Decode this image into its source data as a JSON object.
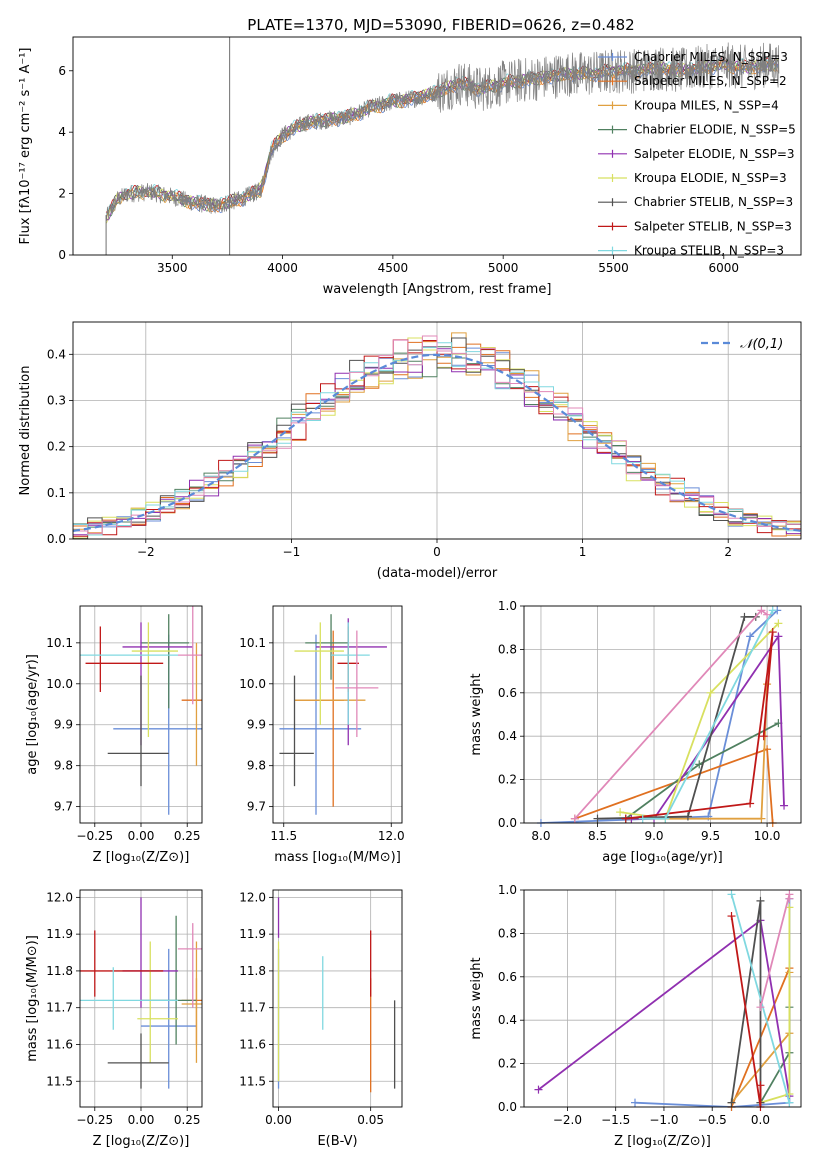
{
  "figure_title": "PLATE=1370, MJD=53090, FIBERID=0626, z=0.482",
  "colors": {
    "Chabrier MILES": "#6a8ed8",
    "Salpeter MILES": "#e07020",
    "Kroupa MILES": "#e0a040",
    "Chabrier ELODIE": "#508060",
    "Salpeter ELODIE": "#9030b0",
    "Kroupa ELODIE": "#d8e060",
    "Chabrier STELIB": "#505050",
    "Salpeter STELIB": "#c01818",
    "Kroupa STELIB": "#80d8e0",
    "pink": "#e088b8",
    "data": "#808080",
    "normal": "#5a8ad8"
  },
  "chart_data": [
    {
      "id": "spectrum",
      "type": "line",
      "xlabel": "wavelength [Angstrom, rest frame]",
      "ylabel": "Flux [fλ10⁻¹⁷ erg cm⁻² s⁻¹ A⁻¹]",
      "xlim": [
        3050,
        6350
      ],
      "ylim": [
        0,
        7.1
      ],
      "xticks": [
        3500,
        4000,
        4500,
        5000,
        5500,
        6000
      ],
      "yticks": [
        0,
        2,
        4,
        6
      ],
      "grid": false,
      "legend_position": "right",
      "series": [
        {
          "name": "Chabrier MILES, N_SSP=3"
        },
        {
          "name": "Salpeter MILES, N_SSP=2"
        },
        {
          "name": "Kroupa MILES, N_SSP=4"
        },
        {
          "name": "Chabrier ELODIE, N_SSP=5"
        },
        {
          "name": "Salpeter ELODIE, N_SSP=3"
        },
        {
          "name": "Kroupa ELODIE, N_SSP=3"
        },
        {
          "name": "Chabrier STELIB, N_SSP=3"
        },
        {
          "name": "Salpeter STELIB, N_SSP=3"
        },
        {
          "name": "Kroupa STELIB, N_SSP=3"
        }
      ],
      "spectrum_anchors": {
        "x": [
          3200,
          3250,
          3300,
          3400,
          3500,
          3600,
          3700,
          3800,
          3900,
          3950,
          4000,
          4100,
          4200,
          4300,
          4400,
          4500,
          4600,
          4700,
          4800,
          4900,
          5000,
          5100,
          5200,
          5300,
          5400,
          5500,
          5600,
          5700,
          5800,
          5900,
          6000,
          6100,
          6200
        ],
        "y": [
          1.2,
          1.8,
          2.0,
          2.05,
          1.9,
          1.7,
          1.6,
          1.8,
          2.1,
          3.4,
          3.9,
          4.3,
          4.4,
          4.5,
          4.8,
          5.0,
          5.1,
          5.3,
          5.6,
          5.4,
          5.6,
          5.7,
          5.8,
          5.9,
          5.9,
          6.0,
          6.0,
          6.1,
          6.0,
          6.1,
          6.2,
          6.1,
          6.2
        ]
      }
    },
    {
      "id": "residuals",
      "type": "histogram",
      "xlabel": "(data-model)/error",
      "ylabel": "Normed distribution",
      "xlim": [
        -2.5,
        2.5
      ],
      "ylim": [
        0,
        0.47
      ],
      "xticks": [
        -2,
        -1,
        0,
        1,
        2
      ],
      "yticks": [
        0.0,
        0.1,
        0.2,
        0.3,
        0.4
      ],
      "grid": true,
      "legend_position": "top-right",
      "bin_width": 0.1,
      "normal_label": "𝒩(0,1)"
    },
    {
      "id": "age-vs-Z",
      "type": "errorbar",
      "xlabel": "Z [log₁₀(Z/Z⊙)]",
      "ylabel": "age  [log₁₀(age/yr)]",
      "xlim": [
        -0.33,
        0.33
      ],
      "ylim": [
        9.66,
        10.19
      ],
      "xticks": [
        -0.25,
        0.0,
        0.25
      ],
      "xticklabels": [
        "−0.25",
        "0.00",
        "0.25"
      ],
      "yticks": [
        9.7,
        9.8,
        9.9,
        10.0,
        10.1
      ],
      "grid": true,
      "points": [
        {
          "c": "Chabrier MILES",
          "x": 0.15,
          "y": 9.89,
          "xe": [
            -0.15,
            0.4
          ],
          "ye": [
            9.68,
            10.12
          ]
        },
        {
          "c": "Salpeter MILES",
          "x": 0.3,
          "y": 9.96,
          "xe": [
            0.22,
            0.4
          ],
          "ye": [
            9.96,
            9.96
          ]
        },
        {
          "c": "Kroupa MILES",
          "x": 0.3,
          "y": 9.96,
          "xe": [
            0.3,
            0.3
          ],
          "ye": [
            9.8,
            10.1
          ]
        },
        {
          "c": "Chabrier ELODIE",
          "x": 0.15,
          "y": 10.1,
          "xe": [
            0.0,
            0.26
          ],
          "ye": [
            9.94,
            10.17
          ]
        },
        {
          "c": "Salpeter ELODIE",
          "x": 0.0,
          "y": 10.09,
          "xe": [
            -0.1,
            0.28
          ],
          "ye": [
            9.85,
            10.15
          ]
        },
        {
          "c": "Kroupa ELODIE",
          "x": 0.04,
          "y": 10.08,
          "xe": [
            -0.05,
            0.2
          ],
          "ye": [
            9.87,
            10.15
          ]
        },
        {
          "c": "Chabrier STELIB",
          "x": 0.0,
          "y": 9.83,
          "xe": [
            -0.18,
            0.15
          ],
          "ye": [
            9.75,
            10.02
          ]
        },
        {
          "c": "Salpeter STELIB",
          "x": -0.22,
          "y": 10.05,
          "xe": [
            -0.3,
            0.12
          ],
          "ye": [
            9.98,
            10.14
          ]
        },
        {
          "c": "Kroupa STELIB",
          "x": -0.15,
          "y": 10.07,
          "xe": [
            -0.33,
            0.2
          ],
          "ye": [
            10.07,
            10.07
          ]
        },
        {
          "c": "pink",
          "x": 0.28,
          "y": 10.07,
          "xe": [
            0.2,
            0.33
          ],
          "ye": [
            9.95,
            10.19
          ]
        }
      ]
    },
    {
      "id": "age-vs-mass",
      "type": "errorbar",
      "xlabel": "mass [log₁₀(M/M⊙)]",
      "ylabel": "",
      "xlim": [
        11.45,
        12.05
      ],
      "ylim": [
        9.66,
        10.19
      ],
      "xticks": [
        11.5,
        12.0
      ],
      "xticklabels": [
        "11.5",
        "12.0"
      ],
      "yticks": [
        9.7,
        9.8,
        9.9,
        10.0,
        10.1
      ],
      "grid": true,
      "points": [
        {
          "c": "Chabrier MILES",
          "x": 11.65,
          "y": 9.89,
          "xe": [
            11.48,
            11.86
          ],
          "ye": [
            9.68,
            10.12
          ]
        },
        {
          "c": "Salpeter MILES",
          "x": 11.73,
          "y": 9.96,
          "xe": [
            11.55,
            11.78
          ],
          "ye": [
            9.7,
            10.13
          ]
        },
        {
          "c": "Kroupa MILES",
          "x": 11.72,
          "y": 9.96,
          "xe": [
            11.55,
            11.88
          ],
          "ye": [
            9.96,
            9.96
          ]
        },
        {
          "c": "Chabrier ELODIE",
          "x": 11.72,
          "y": 10.1,
          "xe": [
            11.6,
            11.8
          ],
          "ye": [
            10.01,
            10.17
          ]
        },
        {
          "c": "Salpeter ELODIE",
          "x": 11.8,
          "y": 10.09,
          "xe": [
            11.65,
            11.98
          ],
          "ye": [
            9.85,
            10.16
          ]
        },
        {
          "c": "Kroupa ELODIE",
          "x": 11.67,
          "y": 10.08,
          "xe": [
            11.55,
            11.78
          ],
          "ye": [
            9.9,
            10.15
          ]
        },
        {
          "c": "Chabrier STELIB",
          "x": 11.55,
          "y": 9.83,
          "xe": [
            11.48,
            11.64
          ],
          "ye": [
            9.75,
            10.02
          ]
        },
        {
          "c": "Salpeter STELIB",
          "x": 11.8,
          "y": 10.05,
          "xe": [
            11.75,
            11.85
          ],
          "ye": [
            9.98,
            10.14
          ]
        },
        {
          "c": "Kroupa STELIB",
          "x": 11.8,
          "y": 10.07,
          "xe": [
            11.72,
            11.9
          ],
          "ye": [
            9.9,
            10.15
          ]
        },
        {
          "c": "pink",
          "x": 11.84,
          "y": 9.99,
          "xe": [
            11.74,
            11.94
          ],
          "ye": [
            9.87,
            10.13
          ]
        }
      ]
    },
    {
      "id": "weight-vs-age",
      "type": "line",
      "xlabel": "age  [log₁₀(age/yr)]",
      "ylabel": "mass weight",
      "xlim": [
        7.85,
        10.3
      ],
      "ylim": [
        0,
        1
      ],
      "xticks": [
        8.0,
        8.5,
        9.0,
        9.5,
        10.0
      ],
      "yticks": [
        0.0,
        0.2,
        0.4,
        0.6,
        0.8,
        1.0
      ],
      "grid": true,
      "series": [
        {
          "c": "Chabrier MILES",
          "x": [
            8.0,
            9.48,
            9.85,
            10.09
          ],
          "y": [
            0.0,
            0.03,
            0.86,
            0.98
          ]
        },
        {
          "c": "Salpeter MILES",
          "x": [
            8.3,
            10.0,
            10.05
          ],
          "y": [
            0.02,
            0.34,
            0.0
          ]
        },
        {
          "c": "Kroupa MILES",
          "x": [
            8.8,
            9.95,
            10.0
          ],
          "y": [
            0.02,
            0.02,
            0.64
          ]
        },
        {
          "c": "Chabrier ELODIE",
          "x": [
            8.75,
            9.4,
            10.1
          ],
          "y": [
            0.02,
            0.27,
            0.46
          ]
        },
        {
          "c": "Salpeter ELODIE",
          "x": [
            8.8,
            9.0,
            10.1,
            10.15
          ],
          "y": [
            0.02,
            0.02,
            0.86,
            0.08
          ]
        },
        {
          "c": "Kroupa ELODIE",
          "x": [
            8.7,
            9.1,
            9.5,
            10.1
          ],
          "y": [
            0.05,
            0.02,
            0.6,
            0.92
          ]
        },
        {
          "c": "Chabrier STELIB",
          "x": [
            8.5,
            9.3,
            9.8,
            9.9
          ],
          "y": [
            0.02,
            0.03,
            0.95,
            0.95
          ]
        },
        {
          "c": "Salpeter STELIB",
          "x": [
            8.75,
            9.85,
            10.05,
            9.97
          ],
          "y": [
            0.02,
            0.09,
            0.88,
            0.4
          ]
        },
        {
          "c": "Kroupa STELIB",
          "x": [
            8.9,
            9.1,
            10.05
          ],
          "y": [
            0.02,
            0.02,
            0.98
          ]
        },
        {
          "c": "pink",
          "x": [
            8.3,
            9.95,
            10.0
          ],
          "y": [
            0.02,
            0.98,
            0.96
          ]
        }
      ]
    },
    {
      "id": "mass-vs-Z",
      "type": "errorbar",
      "xlabel": "Z [log₁₀(Z/Z⊙)]",
      "ylabel": "mass [log₁₀(M/M⊙)]",
      "xlim": [
        -0.33,
        0.33
      ],
      "ylim": [
        11.43,
        12.02
      ],
      "xticks": [
        -0.25,
        0.0,
        0.25
      ],
      "xticklabels": [
        "−0.25",
        "0.00",
        "0.25"
      ],
      "yticks": [
        11.5,
        11.6,
        11.7,
        11.8,
        11.9,
        12.0
      ],
      "grid": true,
      "points": [
        {
          "c": "Chabrier MILES",
          "x": 0.15,
          "y": 11.65,
          "xe": [
            0.0,
            0.3
          ],
          "ye": [
            11.48,
            11.86
          ]
        },
        {
          "c": "Salpeter MILES",
          "x": 0.3,
          "y": 11.72,
          "xe": [
            0.22,
            0.38
          ],
          "ye": [
            11.6,
            11.78
          ]
        },
        {
          "c": "Kroupa MILES",
          "x": 0.3,
          "y": 11.71,
          "xe": [
            0.22,
            0.38
          ],
          "ye": [
            11.55,
            11.88
          ]
        },
        {
          "c": "Chabrier ELODIE",
          "x": 0.19,
          "y": 11.72,
          "xe": [
            0.0,
            0.3
          ],
          "ye": [
            11.6,
            11.95
          ]
        },
        {
          "c": "Salpeter ELODIE",
          "x": 0.0,
          "y": 11.8,
          "xe": [
            -0.1,
            0.2
          ],
          "ye": [
            11.7,
            12.0
          ]
        },
        {
          "c": "Kroupa ELODIE",
          "x": 0.05,
          "y": 11.67,
          "xe": [
            -0.02,
            0.2
          ],
          "ye": [
            11.55,
            11.88
          ]
        },
        {
          "c": "Chabrier STELIB",
          "x": 0.0,
          "y": 11.55,
          "xe": [
            -0.18,
            0.15
          ],
          "ye": [
            11.48,
            11.63
          ]
        },
        {
          "c": "Salpeter STELIB",
          "x": -0.25,
          "y": 11.8,
          "xe": [
            -0.33,
            0.12
          ],
          "ye": [
            11.73,
            11.91
          ]
        },
        {
          "c": "Kroupa STELIB",
          "x": -0.15,
          "y": 11.72,
          "xe": [
            -0.33,
            0.2
          ],
          "ye": [
            11.64,
            11.81
          ]
        },
        {
          "c": "pink",
          "x": 0.28,
          "y": 11.86,
          "xe": [
            0.2,
            0.33
          ],
          "ye": [
            11.7,
            11.93
          ]
        }
      ]
    },
    {
      "id": "mass-vs-EBV",
      "type": "errorbar",
      "xlabel": "E(B-V)",
      "ylabel": "",
      "xlim": [
        -0.003,
        0.067
      ],
      "ylim": [
        11.43,
        12.02
      ],
      "xticks": [
        0.0,
        0.05
      ],
      "xticklabels": [
        "0.00",
        "0.05"
      ],
      "yticks": [
        11.5,
        11.6,
        11.7,
        11.8,
        11.9,
        12.0
      ],
      "grid": true,
      "points": [
        {
          "c": "Chabrier MILES",
          "x": 0.0,
          "y": 11.65,
          "xe": [
            0.0,
            0.0
          ],
          "ye": [
            11.48,
            11.86
          ]
        },
        {
          "c": "Salpeter MILES",
          "x": 0.05,
          "y": 11.72,
          "xe": [
            0.05,
            0.05
          ],
          "ye": [
            11.47,
            11.78
          ]
        },
        {
          "c": "Kroupa ELODIE",
          "x": 0.0,
          "y": 11.67,
          "xe": [
            0.0,
            0.0
          ],
          "ye": [
            11.5,
            11.88
          ]
        },
        {
          "c": "Salpeter ELODIE",
          "x": 0.0,
          "y": 11.94,
          "xe": [
            0.0,
            0.0
          ],
          "ye": [
            11.89,
            12.0
          ]
        },
        {
          "c": "Kroupa STELIB",
          "x": 0.024,
          "y": 11.73,
          "xe": [
            0.024,
            0.024
          ],
          "ye": [
            11.64,
            11.84
          ]
        },
        {
          "c": "Salpeter STELIB",
          "x": 0.05,
          "y": 11.82,
          "xe": [
            0.05,
            0.05
          ],
          "ye": [
            11.73,
            11.91
          ]
        },
        {
          "c": "Chabrier STELIB",
          "x": 0.063,
          "y": 11.6,
          "xe": [
            0.063,
            0.063
          ],
          "ye": [
            11.48,
            11.72
          ]
        }
      ]
    },
    {
      "id": "weight-vs-Z",
      "type": "line",
      "xlabel": "Z [log₁₀(Z/Z⊙)]",
      "ylabel": "mass weight",
      "xlim": [
        -2.45,
        0.42
      ],
      "ylim": [
        0,
        1
      ],
      "xticks": [
        -2.0,
        -1.5,
        -1.0,
        -0.5,
        0.0
      ],
      "xticklabels": [
        "−2.0",
        "−1.5",
        "−1.0",
        "−0.5",
        "0.0"
      ],
      "yticks": [
        0.0,
        0.2,
        0.4,
        0.6,
        0.8,
        1.0
      ],
      "grid": true,
      "series": [
        {
          "c": "Chabrier MILES",
          "x": [
            -1.3,
            -0.3,
            0.3,
            0.3
          ],
          "y": [
            0.02,
            0.0,
            0.02,
            0.96
          ]
        },
        {
          "c": "Salpeter MILES",
          "x": [
            -0.3,
            0.3
          ],
          "y": [
            0.0,
            0.64
          ]
        },
        {
          "c": "Kroupa MILES",
          "x": [
            -0.3,
            0.3,
            0.3
          ],
          "y": [
            0.02,
            0.34,
            0.62
          ]
        },
        {
          "c": "Chabrier ELODIE",
          "x": [
            0.0,
            0.3,
            0.3
          ],
          "y": [
            0.02,
            0.25,
            0.46
          ]
        },
        {
          "c": "Salpeter ELODIE",
          "x": [
            -2.3,
            0.0,
            0.3
          ],
          "y": [
            0.08,
            0.86,
            0.05
          ]
        },
        {
          "c": "Kroupa ELODIE",
          "x": [
            0.0,
            0.3,
            0.3
          ],
          "y": [
            0.02,
            0.06,
            0.92
          ]
        },
        {
          "c": "Chabrier STELIB",
          "x": [
            -0.3,
            0.0,
            0.0
          ],
          "y": [
            0.02,
            0.95,
            0.02
          ]
        },
        {
          "c": "Salpeter STELIB",
          "x": [
            -0.3,
            0.0,
            0.0
          ],
          "y": [
            0.88,
            0.0,
            0.1
          ]
        },
        {
          "c": "Kroupa STELIB",
          "x": [
            -0.3,
            0.3
          ],
          "y": [
            0.98,
            0.02
          ]
        },
        {
          "c": "pink",
          "x": [
            0.0,
            0.3,
            0.3
          ],
          "y": [
            0.46,
            0.98,
            0.96
          ]
        }
      ]
    }
  ]
}
